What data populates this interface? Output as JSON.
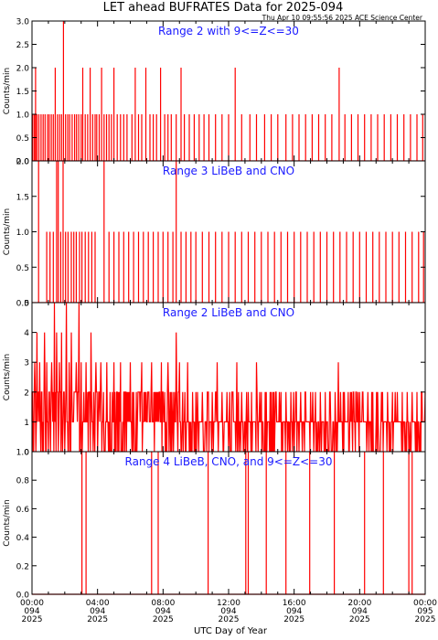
{
  "title": "LET ahead BUFRATES Data for 2025-094",
  "timestamp": "Thu Apr 10 09:55:56 2025 ACE Science Center",
  "xlabel": "UTC Day of Year",
  "colors": {
    "trace": "#ff0000",
    "label": "#1a1aff",
    "axis": "#000000"
  },
  "x_ticks": [
    {
      "h": 0,
      "time": "00:00",
      "doy": "094",
      "year": "2025"
    },
    {
      "h": 4,
      "time": "04:00",
      "doy": "094",
      "year": "2025"
    },
    {
      "h": 8,
      "time": "08:00",
      "doy": "094",
      "year": "2025"
    },
    {
      "h": 12,
      "time": "12:00",
      "doy": "094",
      "year": "2025"
    },
    {
      "h": 16,
      "time": "16:00",
      "doy": "094",
      "year": "2025"
    },
    {
      "h": 20,
      "time": "20:00",
      "doy": "094",
      "year": "2025"
    },
    {
      "h": 24,
      "time": "00:00",
      "doy": "095",
      "year": "2025"
    }
  ],
  "chart_data": [
    {
      "type": "line",
      "label": "Range 2 with 9<=Z<=30",
      "ylabel": "Counts/min",
      "ylim": [
        0,
        3
      ],
      "yticks": [
        "0.0",
        "0.5",
        "1.0",
        "1.5",
        "2.0",
        "2.5",
        "3.0"
      ],
      "xlim_hours": [
        0,
        24
      ],
      "spikes": [
        [
          0.05,
          1
        ],
        [
          0.15,
          1
        ],
        [
          0.22,
          2
        ],
        [
          0.3,
          1
        ],
        [
          0.42,
          1
        ],
        [
          0.55,
          1
        ],
        [
          0.68,
          1
        ],
        [
          0.8,
          1
        ],
        [
          0.95,
          1
        ],
        [
          1.05,
          1
        ],
        [
          1.18,
          1
        ],
        [
          1.3,
          1
        ],
        [
          1.42,
          2
        ],
        [
          1.55,
          1
        ],
        [
          1.68,
          1
        ],
        [
          1.8,
          1
        ],
        [
          1.92,
          3
        ],
        [
          2.05,
          1
        ],
        [
          2.18,
          1
        ],
        [
          2.3,
          1
        ],
        [
          2.45,
          1
        ],
        [
          2.6,
          1
        ],
        [
          2.72,
          1
        ],
        [
          2.85,
          1
        ],
        [
          3.0,
          1
        ],
        [
          3.1,
          2
        ],
        [
          3.25,
          1
        ],
        [
          3.4,
          1
        ],
        [
          3.55,
          2
        ],
        [
          3.7,
          1
        ],
        [
          3.85,
          1
        ],
        [
          3.95,
          1
        ],
        [
          4.1,
          1
        ],
        [
          4.25,
          2
        ],
        [
          4.4,
          1
        ],
        [
          4.55,
          1
        ],
        [
          4.7,
          1
        ],
        [
          4.85,
          1
        ],
        [
          5.0,
          2
        ],
        [
          5.2,
          1
        ],
        [
          5.4,
          1
        ],
        [
          5.6,
          1
        ],
        [
          5.8,
          1
        ],
        [
          6.1,
          1
        ],
        [
          6.3,
          2
        ],
        [
          6.5,
          1
        ],
        [
          6.7,
          1
        ],
        [
          6.95,
          2
        ],
        [
          7.2,
          1
        ],
        [
          7.4,
          1
        ],
        [
          7.6,
          1
        ],
        [
          7.85,
          2
        ],
        [
          8.1,
          1
        ],
        [
          8.3,
          1
        ],
        [
          8.5,
          1
        ],
        [
          8.8,
          1
        ],
        [
          9.1,
          2
        ],
        [
          9.3,
          1
        ],
        [
          9.6,
          1
        ],
        [
          9.9,
          1
        ],
        [
          10.2,
          1
        ],
        [
          10.5,
          1
        ],
        [
          10.8,
          1
        ],
        [
          11.2,
          1
        ],
        [
          11.6,
          1
        ],
        [
          12.0,
          1
        ],
        [
          12.4,
          2
        ],
        [
          12.8,
          1
        ],
        [
          13.3,
          1
        ],
        [
          13.7,
          1
        ],
        [
          14.2,
          1
        ],
        [
          14.6,
          1
        ],
        [
          15.0,
          1
        ],
        [
          15.5,
          1
        ],
        [
          15.9,
          1
        ],
        [
          16.3,
          1
        ],
        [
          16.7,
          1
        ],
        [
          17.1,
          1
        ],
        [
          17.5,
          1
        ],
        [
          17.9,
          1
        ],
        [
          18.3,
          1
        ],
        [
          18.75,
          2
        ],
        [
          19.1,
          1
        ],
        [
          19.5,
          1
        ],
        [
          19.9,
          1
        ],
        [
          20.3,
          1
        ],
        [
          20.7,
          1
        ],
        [
          21.1,
          1
        ],
        [
          21.5,
          1
        ],
        [
          21.9,
          1
        ],
        [
          22.3,
          1
        ],
        [
          22.7,
          1
        ],
        [
          23.1,
          1
        ],
        [
          23.5,
          1
        ],
        [
          23.85,
          1
        ]
      ]
    },
    {
      "type": "line",
      "label": "Range 3 LiBeB and CNO",
      "ylabel": "Counts/min",
      "ylim": [
        0,
        2
      ],
      "yticks": [
        "0.0",
        "0.5",
        "1.0",
        "1.5",
        "2.0"
      ],
      "xlim_hours": [
        0,
        24
      ],
      "spikes": [
        [
          0.4,
          2
        ],
        [
          0.9,
          1
        ],
        [
          1.1,
          1
        ],
        [
          1.3,
          1
        ],
        [
          1.5,
          2
        ],
        [
          1.6,
          2
        ],
        [
          1.75,
          1
        ],
        [
          1.9,
          2
        ],
        [
          2.05,
          1
        ],
        [
          2.2,
          1
        ],
        [
          2.4,
          1
        ],
        [
          2.55,
          1
        ],
        [
          2.7,
          1
        ],
        [
          2.9,
          1
        ],
        [
          3.05,
          1
        ],
        [
          3.25,
          1
        ],
        [
          3.45,
          1
        ],
        [
          3.65,
          1
        ],
        [
          3.85,
          1
        ],
        [
          4.4,
          2
        ],
        [
          4.7,
          1
        ],
        [
          5.0,
          1
        ],
        [
          5.3,
          1
        ],
        [
          5.6,
          1
        ],
        [
          5.9,
          1
        ],
        [
          6.2,
          1
        ],
        [
          6.5,
          1
        ],
        [
          6.8,
          1
        ],
        [
          7.1,
          1
        ],
        [
          7.4,
          1
        ],
        [
          7.7,
          1
        ],
        [
          8.0,
          1
        ],
        [
          8.3,
          1
        ],
        [
          8.6,
          1
        ],
        [
          8.8,
          2
        ],
        [
          9.1,
          1
        ],
        [
          9.4,
          1
        ],
        [
          9.7,
          1
        ],
        [
          10.0,
          1
        ],
        [
          10.4,
          1
        ],
        [
          10.8,
          1
        ],
        [
          11.2,
          1
        ],
        [
          11.6,
          1
        ],
        [
          12.0,
          1
        ],
        [
          12.4,
          1
        ],
        [
          12.8,
          1
        ],
        [
          13.2,
          1
        ],
        [
          13.6,
          1
        ],
        [
          14.0,
          1
        ],
        [
          14.4,
          1
        ],
        [
          14.8,
          1
        ],
        [
          15.2,
          1
        ],
        [
          15.6,
          1
        ],
        [
          16.0,
          1
        ],
        [
          16.4,
          1
        ],
        [
          16.8,
          1
        ],
        [
          17.2,
          1
        ],
        [
          17.6,
          1
        ],
        [
          18.0,
          1
        ],
        [
          18.4,
          1
        ],
        [
          18.8,
          1
        ],
        [
          19.2,
          1
        ],
        [
          19.6,
          1
        ],
        [
          20.0,
          1
        ],
        [
          20.4,
          1
        ],
        [
          20.8,
          1
        ],
        [
          21.2,
          1
        ],
        [
          21.6,
          1
        ],
        [
          22.0,
          1
        ],
        [
          22.4,
          1
        ],
        [
          22.8,
          1
        ],
        [
          23.2,
          1
        ],
        [
          23.6,
          1
        ],
        [
          23.9,
          1
        ]
      ]
    },
    {
      "type": "line",
      "label": "Range 2 LiBeB and CNO",
      "ylabel": "Counts/min",
      "ylim": [
        0,
        5
      ],
      "yticks": [
        "0",
        "1",
        "2",
        "3",
        "4",
        "5"
      ],
      "xlim_hours": [
        0,
        24
      ],
      "peaks": [
        [
          0.15,
          3
        ],
        [
          0.3,
          4
        ],
        [
          0.45,
          3
        ],
        [
          0.6,
          2
        ],
        [
          0.75,
          4
        ],
        [
          0.9,
          3
        ],
        [
          1.05,
          2
        ],
        [
          1.2,
          3
        ],
        [
          1.35,
          5
        ],
        [
          1.5,
          4
        ],
        [
          1.65,
          3
        ],
        [
          1.8,
          4
        ],
        [
          1.95,
          2
        ],
        [
          2.1,
          5
        ],
        [
          2.25,
          3
        ],
        [
          2.4,
          4
        ],
        [
          2.55,
          2
        ],
        [
          2.7,
          3
        ],
        [
          2.85,
          5
        ],
        [
          3.0,
          3
        ],
        [
          3.15,
          2
        ],
        [
          3.3,
          3
        ],
        [
          3.45,
          2
        ],
        [
          3.6,
          4
        ],
        [
          3.75,
          2
        ],
        [
          3.9,
          3
        ],
        [
          4.05,
          2
        ],
        [
          4.2,
          3
        ],
        [
          4.35,
          2
        ],
        [
          4.55,
          3
        ],
        [
          4.75,
          2
        ],
        [
          5.0,
          3
        ],
        [
          5.2,
          2
        ],
        [
          5.4,
          3
        ],
        [
          5.6,
          2
        ],
        [
          5.8,
          2
        ],
        [
          6.0,
          3
        ],
        [
          6.2,
          2
        ],
        [
          6.45,
          2
        ],
        [
          6.7,
          3
        ],
        [
          6.9,
          2
        ],
        [
          7.1,
          2
        ],
        [
          7.3,
          3
        ],
        [
          7.5,
          2
        ],
        [
          7.7,
          2
        ],
        [
          7.9,
          3
        ],
        [
          8.1,
          2
        ],
        [
          8.3,
          3
        ],
        [
          8.6,
          2
        ],
        [
          8.8,
          4
        ],
        [
          9.0,
          3
        ],
        [
          9.2,
          2
        ],
        [
          9.5,
          3
        ],
        [
          9.8,
          2
        ],
        [
          10.1,
          2
        ],
        [
          10.4,
          2
        ],
        [
          10.7,
          2
        ],
        [
          11.0,
          2
        ],
        [
          11.3,
          3
        ],
        [
          11.6,
          2
        ],
        [
          11.9,
          2
        ],
        [
          12.2,
          2
        ],
        [
          12.5,
          3
        ],
        [
          12.8,
          2
        ],
        [
          13.1,
          2
        ],
        [
          13.4,
          2
        ],
        [
          13.7,
          3
        ],
        [
          14.0,
          2
        ],
        [
          14.3,
          2
        ],
        [
          14.6,
          2
        ],
        [
          14.9,
          2
        ],
        [
          15.2,
          2
        ],
        [
          15.5,
          2
        ],
        [
          15.8,
          2
        ],
        [
          16.1,
          2
        ],
        [
          16.4,
          2
        ],
        [
          16.7,
          2
        ],
        [
          17.0,
          2
        ],
        [
          17.3,
          2
        ],
        [
          17.6,
          2
        ],
        [
          17.9,
          2
        ],
        [
          18.2,
          2
        ],
        [
          18.5,
          2
        ],
        [
          18.7,
          3
        ],
        [
          19.0,
          2
        ],
        [
          19.3,
          2
        ],
        [
          19.6,
          2
        ],
        [
          19.9,
          2
        ],
        [
          20.2,
          2
        ],
        [
          20.5,
          2
        ],
        [
          20.8,
          2
        ],
        [
          21.1,
          2
        ],
        [
          21.4,
          2
        ],
        [
          21.7,
          2
        ],
        [
          22.0,
          2
        ],
        [
          22.3,
          2
        ],
        [
          22.6,
          2
        ],
        [
          22.9,
          2
        ],
        [
          23.2,
          2
        ],
        [
          23.5,
          2
        ],
        [
          23.8,
          2
        ]
      ]
    },
    {
      "type": "line",
      "label": "Range 4 LiBeB, CNO, and 9<=Z<=30",
      "ylabel": "Counts/min",
      "ylim": [
        0,
        1
      ],
      "yticks": [
        "0.0",
        "0.2",
        "0.4",
        "0.6",
        "0.8",
        "1.0"
      ],
      "xlim_hours": [
        0,
        24
      ],
      "spikes": [
        [
          3.05,
          1
        ],
        [
          3.3,
          1
        ],
        [
          7.3,
          1
        ],
        [
          7.7,
          1
        ],
        [
          10.75,
          1
        ],
        [
          13.05,
          1
        ],
        [
          13.2,
          1
        ],
        [
          14.3,
          1
        ],
        [
          15.5,
          1
        ],
        [
          16.95,
          1
        ],
        [
          18.45,
          1
        ],
        [
          20.3,
          1
        ],
        [
          21.45,
          1
        ],
        [
          23.0,
          1
        ],
        [
          23.2,
          1
        ]
      ]
    }
  ]
}
